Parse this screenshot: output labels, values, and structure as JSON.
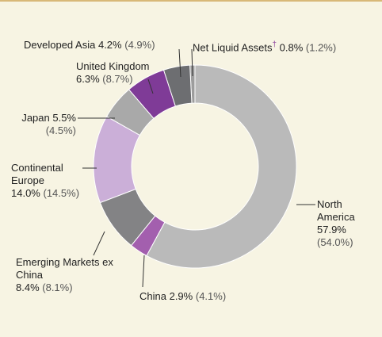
{
  "chart_data": {
    "type": "donut",
    "categories": [
      "North America",
      "China",
      "Emerging Markets ex China",
      "Continental Europe",
      "Japan",
      "United Kingdom",
      "Developed Asia",
      "Net Liquid Assets"
    ],
    "values": [
      57.9,
      2.9,
      8.4,
      14.0,
      5.5,
      6.3,
      4.2,
      0.8
    ],
    "value_labels": [
      "57.9%",
      "2.9%",
      "8.4%",
      "14.0%",
      "5.5%",
      "6.3%",
      "4.2%",
      "0.8%"
    ],
    "prior_values": [
      54.0,
      4.1,
      8.1,
      14.5,
      4.5,
      8.7,
      4.9,
      1.2
    ],
    "prior_value_labels": [
      "(54.0%)",
      "(4.1%)",
      "(8.1%)",
      "(14.5%)",
      "(4.5%)",
      "(8.7%)",
      "(4.9%)",
      "(1.2%)"
    ],
    "colors": [
      "#bababa",
      "#a35fae",
      "#838385",
      "#cbafd8",
      "#a9a9a9",
      "#7f3b97",
      "#6d6e71",
      "#9d9d9d"
    ],
    "footnote_marker": "†"
  }
}
